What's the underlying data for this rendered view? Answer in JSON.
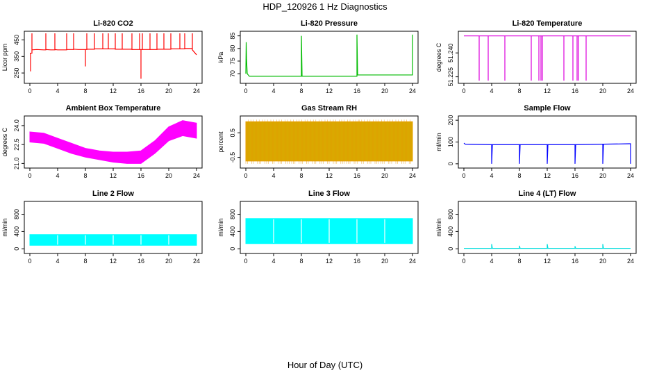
{
  "page": {
    "title": "HDP_120926  1 Hz Diagnostics",
    "xlabel": "Hour of Day (UTC)"
  },
  "chart_data": [
    {
      "type": "line",
      "title": "Li-820 CO2",
      "ylabel": "Licor ppm",
      "color": "#ff0000",
      "xlim": [
        0,
        24
      ],
      "ylim": [
        200,
        490
      ],
      "xticks": [
        0,
        4,
        8,
        12,
        16,
        20,
        24
      ],
      "yticks": [
        250,
        350,
        450
      ],
      "series": [
        {
          "x": [
            0,
            0.1,
            0.1,
            0.1,
            0.3,
            0.3,
            0.3,
            1,
            2,
            2.3,
            2.3,
            2.3,
            3,
            3.6,
            3.6,
            3.6,
            4,
            5.3,
            5.3,
            5.3,
            6.3,
            6.3,
            6.3,
            7,
            8,
            8,
            8,
            8.2,
            8.2,
            8.2,
            9.3,
            9.3,
            9.3,
            10.5,
            10.5,
            10.5,
            11.3,
            11.3,
            11.3,
            12.3,
            12.3,
            12.3,
            13.3,
            13.3,
            13.3,
            14.7,
            14.7,
            14.7,
            15.8,
            15.8,
            15.8,
            16,
            16,
            16,
            16.2,
            16.2,
            16.2,
            17.3,
            17.3,
            17.3,
            18.3,
            18.3,
            18.3,
            19.3,
            19.3,
            19.3,
            20.3,
            20.3,
            20.3,
            21.6,
            21.6,
            21.6,
            22.3,
            22.3,
            22.3,
            23.4,
            23.4,
            23.4,
            24
          ],
          "y": [
            370,
            370,
            260,
            370,
            370,
            490,
            390,
            392,
            390,
            390,
            490,
            392,
            390,
            390,
            490,
            392,
            390,
            390,
            490,
            392,
            392,
            490,
            394,
            392,
            392,
            290,
            392,
            392,
            490,
            394,
            394,
            490,
            396,
            396,
            490,
            396,
            396,
            490,
            396,
            396,
            490,
            394,
            394,
            490,
            394,
            394,
            490,
            392,
            392,
            490,
            392,
            392,
            215,
            392,
            392,
            490,
            392,
            392,
            490,
            392,
            392,
            490,
            394,
            394,
            490,
            394,
            394,
            490,
            396,
            396,
            490,
            396,
            396,
            490,
            398,
            398,
            490,
            390,
            360
          ]
        }
      ]
    },
    {
      "type": "line",
      "title": "Li-820 Pressure",
      "ylabel": "kPa",
      "color": "#00bb00",
      "xlim": [
        0,
        24
      ],
      "ylim": [
        67,
        86
      ],
      "xticks": [
        0,
        4,
        8,
        12,
        16,
        20,
        24
      ],
      "yticks": [
        70,
        75,
        80,
        85
      ],
      "series": [
        {
          "x": [
            0,
            0.05,
            0.1,
            0.2,
            0.5,
            4,
            7.9,
            8,
            8,
            8.1,
            12,
            15.8,
            16,
            16,
            16.1,
            20,
            23.9,
            24,
            24
          ],
          "y": [
            70,
            82.5,
            76,
            70,
            69,
            69,
            69,
            69,
            85,
            69,
            69,
            69,
            69,
            85.5,
            69.5,
            69.5,
            69.5,
            69.5,
            85.5
          ]
        }
      ]
    },
    {
      "type": "line",
      "title": "Li-820 Temperature",
      "ylabel": "degrees C",
      "color": "#dd00dd",
      "xlim": [
        0,
        24
      ],
      "ylim": [
        51.2222,
        51.2523
      ],
      "xticks": [
        0,
        4,
        8,
        12,
        16,
        20,
        24
      ],
      "yticks": [
        51.225,
        51.24
      ],
      "ytick_labels": [
        "51.225",
        "51.240"
      ],
      "series": [
        {
          "x": [
            0,
            2.2,
            2.2,
            2.2,
            3.5,
            3.5,
            3.5,
            5.9,
            5.9,
            5.9,
            9.7,
            9.7,
            9.7,
            10.8,
            10.8,
            10.8,
            11.1,
            11.1,
            11.1,
            11.3,
            11.3,
            11.3,
            14.4,
            14.4,
            14.4,
            15.7,
            15.7,
            15.7,
            16.3,
            16.3,
            16.3,
            16.5,
            16.5,
            16.5,
            17.6,
            17.6,
            17.6,
            24
          ],
          "y": [
            51.2507,
            51.2507,
            51.2226,
            51.2507,
            51.2507,
            51.2226,
            51.2507,
            51.2507,
            51.2226,
            51.2507,
            51.2507,
            51.2226,
            51.2507,
            51.2507,
            51.2226,
            51.2507,
            51.2507,
            51.2226,
            51.2507,
            51.2507,
            51.2226,
            51.2507,
            51.2507,
            51.2226,
            51.2507,
            51.2507,
            51.2226,
            51.2507,
            51.2507,
            51.2226,
            51.2507,
            51.2507,
            51.2226,
            51.2507,
            51.2507,
            51.2226,
            51.2507,
            51.2507
          ]
        }
      ]
    },
    {
      "type": "area",
      "title": "Ambient Box Temperature",
      "ylabel": "degrees C",
      "color": "#ff00ff",
      "xlim": [
        0,
        24
      ],
      "ylim": [
        20.8,
        24.6
      ],
      "xticks": [
        0,
        4,
        8,
        12,
        16,
        20,
        24
      ],
      "yticks": [
        21.0,
        22.5,
        24.0
      ],
      "ytick_labels": [
        "21.0",
        "22.5",
        "24.0"
      ],
      "series": [
        {
          "name": "upper",
          "x": [
            0,
            2,
            4,
            6,
            8,
            10,
            12,
            14,
            16,
            18,
            20,
            22,
            24
          ],
          "y": [
            23.5,
            23.4,
            23.0,
            22.6,
            22.2,
            22.0,
            21.9,
            21.9,
            22.0,
            22.8,
            23.9,
            24.4,
            24.2
          ]
        },
        {
          "name": "lower",
          "x": [
            0,
            2,
            4,
            6,
            8,
            10,
            12,
            14,
            16,
            18,
            20,
            22,
            24
          ],
          "y": [
            22.7,
            22.6,
            22.2,
            21.8,
            21.5,
            21.3,
            21.1,
            21.0,
            21.0,
            21.8,
            22.8,
            23.2,
            23.0
          ]
        }
      ]
    },
    {
      "type": "area",
      "title": "Gas Stream RH",
      "ylabel": "percent",
      "color": "#e8a000",
      "fill": "#d4b000",
      "xlim": [
        0,
        24
      ],
      "ylim": [
        -0.85,
        1.1
      ],
      "xticks": [
        0,
        4,
        8,
        12,
        16,
        20,
        24
      ],
      "yticks": [
        -0.5,
        0.5
      ],
      "series": [
        {
          "name": "upper",
          "x": [
            0,
            24
          ],
          "y": [
            0.95,
            0.95
          ]
        },
        {
          "name": "lower",
          "x": [
            0,
            24
          ],
          "y": [
            -0.65,
            -0.65
          ]
        }
      ]
    },
    {
      "type": "line",
      "title": "Sample Flow",
      "ylabel": "ml/min",
      "color": "#0000ff",
      "xlim": [
        0,
        24
      ],
      "ylim": [
        -10,
        210
      ],
      "xticks": [
        0,
        4,
        8,
        12,
        16,
        20,
        24
      ],
      "yticks": [
        0,
        100,
        200
      ],
      "series": [
        {
          "x": [
            0,
            0.2,
            3.9,
            4,
            4,
            4.1,
            7.8,
            8,
            8,
            8.1,
            11.8,
            12,
            12,
            12.1,
            15.8,
            16,
            16,
            16.1,
            19.8,
            20,
            20,
            20.1,
            23.8,
            24,
            24
          ],
          "y": [
            95,
            90,
            88,
            88,
            0,
            88,
            88,
            88,
            0,
            88,
            88,
            88,
            0,
            88,
            88,
            88,
            0,
            88,
            90,
            90,
            0,
            90,
            92,
            92,
            0
          ]
        }
      ]
    },
    {
      "type": "area",
      "title": "Line 2 Flow",
      "ylabel": "ml/min",
      "color": "#00ffff",
      "xlim": [
        0,
        24
      ],
      "ylim": [
        -60,
        1050
      ],
      "xticks": [
        0,
        4,
        8,
        12,
        16,
        20,
        24
      ],
      "yticks": [
        0,
        400,
        800
      ],
      "gaps": [
        4,
        8,
        12,
        16,
        20
      ],
      "series": [
        {
          "name": "upper",
          "x": [
            0,
            24
          ],
          "y": [
            330,
            330
          ]
        },
        {
          "name": "lower",
          "x": [
            0,
            24
          ],
          "y": [
            80,
            80
          ]
        }
      ]
    },
    {
      "type": "area",
      "title": "Line 3 Flow",
      "ylabel": "ml/min",
      "color": "#00ffff",
      "xlim": [
        0,
        24
      ],
      "ylim": [
        -60,
        1050
      ],
      "xticks": [
        0,
        4,
        8,
        12,
        16,
        20,
        24
      ],
      "yticks": [
        0,
        400,
        800
      ],
      "gaps": [
        4,
        8,
        12,
        16,
        20
      ],
      "series": [
        {
          "name": "upper",
          "x": [
            0,
            24
          ],
          "y": [
            700,
            700
          ]
        },
        {
          "name": "lower",
          "x": [
            0,
            24
          ],
          "y": [
            120,
            120
          ]
        }
      ]
    },
    {
      "type": "line",
      "title": "Line 4 (LT) Flow",
      "ylabel": "ml/min",
      "color": "#00dddd",
      "xlim": [
        0,
        24
      ],
      "ylim": [
        -60,
        1050
      ],
      "xticks": [
        0,
        4,
        8,
        12,
        16,
        20,
        24
      ],
      "yticks": [
        0,
        400,
        800
      ],
      "series": [
        {
          "x": [
            0,
            3.9,
            4,
            4,
            4.1,
            7.9,
            8,
            8,
            8.1,
            11.9,
            12,
            12,
            12.1,
            15.9,
            16,
            16,
            16.1,
            19.9,
            20,
            20,
            20.1,
            24
          ],
          "y": [
            10,
            10,
            10,
            110,
            10,
            10,
            10,
            70,
            10,
            10,
            10,
            110,
            10,
            10,
            10,
            60,
            10,
            10,
            10,
            110,
            10,
            10
          ]
        }
      ]
    }
  ]
}
